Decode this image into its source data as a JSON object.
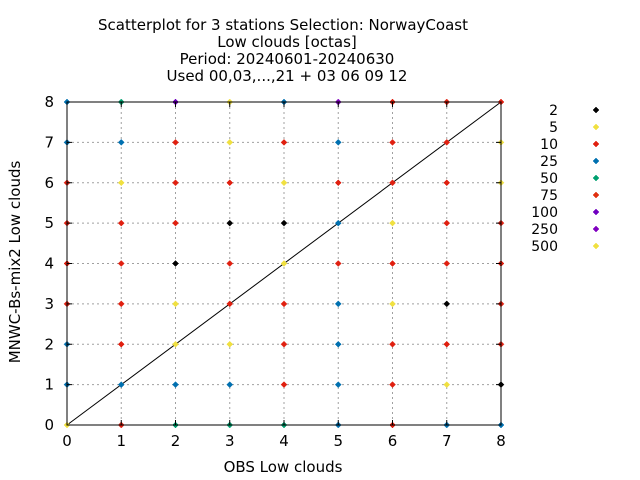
{
  "chart_data": {
    "type": "scatter",
    "title_lines": [
      "Scatterplot for    3 stations Selection: NorwayCoast",
      "Low clouds [octas]",
      "Period: 20240601-20240630",
      "Used 00,03,...,21 + 03 06 09 12"
    ],
    "xlabel": "OBS Low clouds",
    "ylabel": "MNWC-Bs-mix2 Low clouds",
    "xlim": [
      0,
      8
    ],
    "ylim": [
      0,
      8
    ],
    "xticks": [
      "0",
      "1",
      "2",
      "3",
      "4",
      "5",
      "6",
      "7",
      "8"
    ],
    "yticks": [
      "0",
      "1",
      "2",
      "3",
      "4",
      "5",
      "6",
      "7",
      "8"
    ],
    "grid": true,
    "diagonal": true,
    "legend_placement": "right",
    "legend": [
      {
        "label": "2",
        "color": "#000000"
      },
      {
        "label": "5",
        "color": "#f0e040"
      },
      {
        "label": "10",
        "color": "#e02010"
      },
      {
        "label": "25",
        "color": "#0070b0"
      },
      {
        "label": "50",
        "color": "#00a070"
      },
      {
        "label": "75",
        "color": "#e03010"
      },
      {
        "label": "100",
        "color": "#7000c0"
      },
      {
        "label": "250",
        "color": "#8000c0"
      },
      {
        "label": "500",
        "color": "#f0e040"
      }
    ],
    "points": [
      {
        "x": 0,
        "y": 8,
        "c": 3
      },
      {
        "x": 1,
        "y": 8,
        "c": 4
      },
      {
        "x": 2,
        "y": 8,
        "c": 6
      },
      {
        "x": 3,
        "y": 8,
        "c": 1
      },
      {
        "x": 4,
        "y": 8,
        "c": 3
      },
      {
        "x": 5,
        "y": 8,
        "c": 7
      },
      {
        "x": 6,
        "y": 8,
        "c": 2
      },
      {
        "x": 7,
        "y": 8,
        "c": 2
      },
      {
        "x": 8,
        "y": 8,
        "c": 2
      },
      {
        "x": 0,
        "y": 7,
        "c": 3
      },
      {
        "x": 1,
        "y": 7,
        "c": 3
      },
      {
        "x": 2,
        "y": 7,
        "c": 2
      },
      {
        "x": 3,
        "y": 7,
        "c": 1
      },
      {
        "x": 4,
        "y": 7,
        "c": 2
      },
      {
        "x": 5,
        "y": 7,
        "c": 3
      },
      {
        "x": 6,
        "y": 7,
        "c": 2
      },
      {
        "x": 7,
        "y": 7,
        "c": 2
      },
      {
        "x": 8,
        "y": 7,
        "c": 1
      },
      {
        "x": 0,
        "y": 6,
        "c": 2
      },
      {
        "x": 1,
        "y": 6,
        "c": 1
      },
      {
        "x": 2,
        "y": 6,
        "c": 2
      },
      {
        "x": 3,
        "y": 6,
        "c": 2
      },
      {
        "x": 4,
        "y": 6,
        "c": 1
      },
      {
        "x": 5,
        "y": 6,
        "c": 2
      },
      {
        "x": 6,
        "y": 6,
        "c": 2
      },
      {
        "x": 7,
        "y": 6,
        "c": 2
      },
      {
        "x": 8,
        "y": 6,
        "c": 1
      },
      {
        "x": 0,
        "y": 5,
        "c": 2
      },
      {
        "x": 1,
        "y": 5,
        "c": 2
      },
      {
        "x": 2,
        "y": 5,
        "c": 2
      },
      {
        "x": 3,
        "y": 5,
        "c": 0
      },
      {
        "x": 4,
        "y": 5,
        "c": 0
      },
      {
        "x": 5,
        "y": 5,
        "c": 3
      },
      {
        "x": 6,
        "y": 5,
        "c": 1
      },
      {
        "x": 7,
        "y": 5,
        "c": 2
      },
      {
        "x": 8,
        "y": 5,
        "c": 2
      },
      {
        "x": 0,
        "y": 4,
        "c": 2
      },
      {
        "x": 1,
        "y": 4,
        "c": 2
      },
      {
        "x": 2,
        "y": 4,
        "c": 0
      },
      {
        "x": 3,
        "y": 4,
        "c": 2
      },
      {
        "x": 4,
        "y": 4,
        "c": 1
      },
      {
        "x": 5,
        "y": 4,
        "c": 2
      },
      {
        "x": 6,
        "y": 4,
        "c": 2
      },
      {
        "x": 7,
        "y": 4,
        "c": 2
      },
      {
        "x": 8,
        "y": 4,
        "c": 2
      },
      {
        "x": 0,
        "y": 3,
        "c": 2
      },
      {
        "x": 1,
        "y": 3,
        "c": 2
      },
      {
        "x": 2,
        "y": 3,
        "c": 1
      },
      {
        "x": 3,
        "y": 3,
        "c": 2
      },
      {
        "x": 4,
        "y": 3,
        "c": 2
      },
      {
        "x": 5,
        "y": 3,
        "c": 3
      },
      {
        "x": 6,
        "y": 3,
        "c": 1
      },
      {
        "x": 7,
        "y": 3,
        "c": 0
      },
      {
        "x": 8,
        "y": 3,
        "c": 2
      },
      {
        "x": 0,
        "y": 2,
        "c": 3
      },
      {
        "x": 1,
        "y": 2,
        "c": 2
      },
      {
        "x": 2,
        "y": 2,
        "c": 1
      },
      {
        "x": 3,
        "y": 2,
        "c": 1
      },
      {
        "x": 4,
        "y": 2,
        "c": 2
      },
      {
        "x": 5,
        "y": 2,
        "c": 3
      },
      {
        "x": 6,
        "y": 2,
        "c": 2
      },
      {
        "x": 7,
        "y": 2,
        "c": 2
      },
      {
        "x": 8,
        "y": 2,
        "c": 2
      },
      {
        "x": 0,
        "y": 1,
        "c": 3
      },
      {
        "x": 1,
        "y": 1,
        "c": 3
      },
      {
        "x": 2,
        "y": 1,
        "c": 3
      },
      {
        "x": 3,
        "y": 1,
        "c": 3
      },
      {
        "x": 4,
        "y": 1,
        "c": 2
      },
      {
        "x": 5,
        "y": 1,
        "c": 3
      },
      {
        "x": 6,
        "y": 1,
        "c": 2
      },
      {
        "x": 7,
        "y": 1,
        "c": 1
      },
      {
        "x": 8,
        "y": 1,
        "c": 0
      },
      {
        "x": 0,
        "y": 0,
        "c": 1
      },
      {
        "x": 1,
        "y": 0,
        "c": 2
      },
      {
        "x": 2,
        "y": 0,
        "c": 4
      },
      {
        "x": 3,
        "y": 0,
        "c": 4
      },
      {
        "x": 4,
        "y": 0,
        "c": 4
      },
      {
        "x": 5,
        "y": 0,
        "c": 3
      },
      {
        "x": 6,
        "y": 0,
        "c": 2
      },
      {
        "x": 7,
        "y": 0,
        "c": 3
      },
      {
        "x": 8,
        "y": 0,
        "c": 3
      }
    ]
  }
}
